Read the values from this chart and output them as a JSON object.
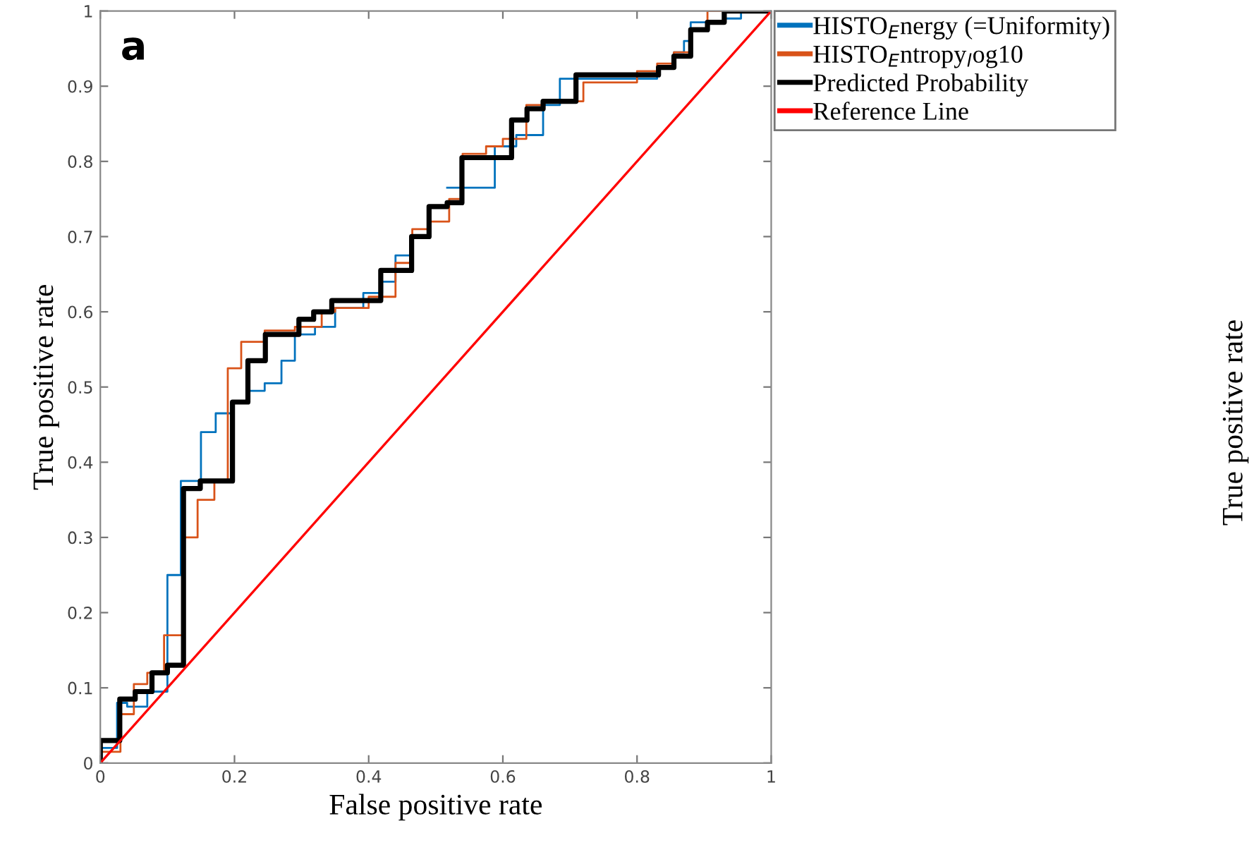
{
  "chart_data": {
    "type": "step",
    "xlabel": "False positive rate",
    "ylabel": "True positive rate",
    "xlim": [
      0,
      1
    ],
    "ylim": [
      0,
      1
    ],
    "xticks": [
      0,
      0.2,
      0.4,
      0.6,
      0.8,
      1
    ],
    "yticks": [
      0,
      0.1,
      0.2,
      0.3,
      0.4,
      0.5,
      0.6,
      0.7,
      0.8,
      0.9,
      1
    ],
    "grid": false,
    "legend": "top right",
    "annotations": [
      "a",
      "True positive rate"
    ],
    "series": [
      {
        "name": "HISTO$_{E}$nergy (=Uniformity)",
        "color": "#0072bd",
        "x": [
          0,
          0,
          0.025,
          0.04,
          0.07,
          0.1,
          0.12,
          0.15,
          0.172,
          0.197,
          0.22,
          0.245,
          0.27,
          0.29,
          0.32,
          0.35,
          0.392,
          0.42,
          0.44,
          0.465,
          0.49,
          0.517,
          0.588,
          0.62,
          0.66,
          0.685,
          0.83,
          0.855,
          0.87,
          0.88,
          0.93,
          0.955,
          1
        ],
        "values": [
          0,
          0.02,
          0.08,
          0.075,
          0.095,
          0.25,
          0.375,
          0.44,
          0.465,
          0.48,
          0.495,
          0.505,
          0.535,
          0.57,
          0.58,
          0.605,
          0.625,
          0.64,
          0.675,
          0.7,
          null,
          0.765,
          0.82,
          0.835,
          0.875,
          0.91,
          0.925,
          0.945,
          0.96,
          0.985,
          0.99,
          1,
          1
        ]
      },
      {
        "name": "HISTO$_{E}$ntropy$_{l}$og10",
        "color": "#d95319",
        "x": [
          0,
          0,
          0.03,
          0.05,
          0.07,
          0.095,
          0.124,
          0.145,
          0.17,
          0.19,
          0.21,
          0.245,
          0.29,
          0.33,
          0.35,
          0.4,
          0.44,
          0.465,
          0.49,
          0.52,
          0.54,
          0.575,
          0.6,
          0.635,
          0.66,
          0.72,
          0.8,
          0.83,
          0.855,
          0.88,
          0.905,
          1
        ],
        "values": [
          0,
          0.015,
          0.065,
          0.105,
          0.12,
          0.17,
          0.3,
          0.35,
          0.375,
          0.525,
          0.56,
          0.575,
          0.58,
          0.6,
          0.605,
          0.62,
          0.665,
          0.71,
          0.72,
          0.75,
          0.81,
          0.82,
          0.83,
          0.875,
          0.88,
          0.905,
          0.92,
          0.93,
          0.945,
          0.975,
          1,
          1
        ]
      },
      {
        "name": "Predicted Probability",
        "color": "#000000",
        "x": [
          0,
          0,
          0.029,
          0.052,
          0.077,
          0.1,
          0.124,
          0.149,
          0.197,
          0.22,
          0.246,
          0.296,
          0.318,
          0.345,
          0.418,
          0.464,
          0.49,
          0.517,
          0.539,
          0.613,
          0.636,
          0.66,
          0.709,
          0.832,
          0.855,
          0.88,
          0.905,
          0.93,
          1
        ],
        "values": [
          0,
          0.03,
          0.085,
          0.095,
          0.12,
          0.13,
          0.365,
          0.375,
          0.48,
          0.535,
          0.57,
          0.59,
          0.6,
          0.615,
          0.655,
          0.7,
          0.74,
          0.745,
          0.805,
          0.855,
          0.87,
          0.88,
          0.915,
          0.925,
          0.94,
          0.975,
          0.985,
          1,
          1
        ]
      },
      {
        "name": "Reference Line",
        "color": "#ff0000",
        "type": "line",
        "x": [
          0,
          1
        ],
        "values": [
          0,
          1
        ]
      }
    ]
  }
}
